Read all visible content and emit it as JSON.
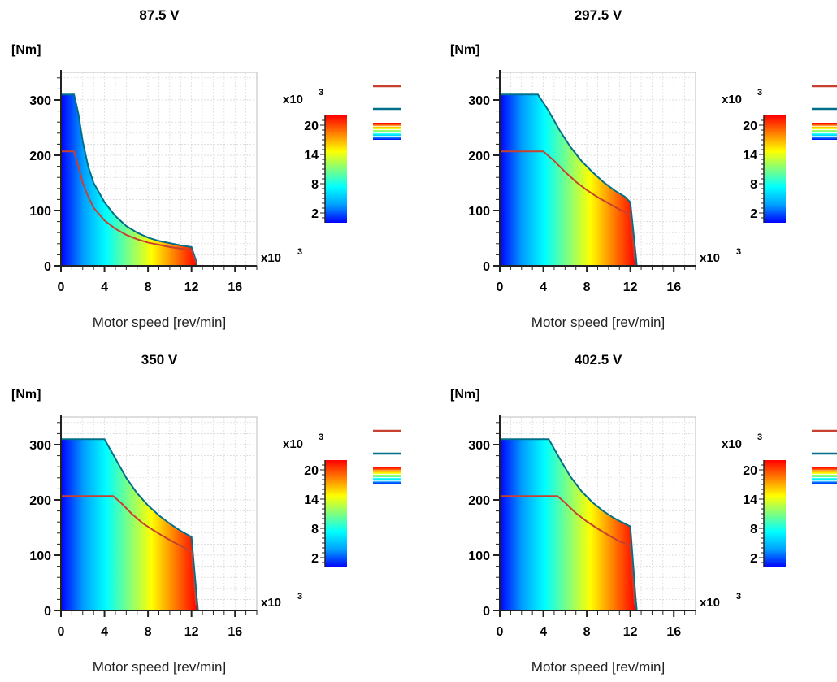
{
  "colors": {
    "max_torque_line": "#00708a",
    "rated_torque_line": "#c8402f",
    "grid": "#d4d4d4",
    "axis": "#222222",
    "colormap": [
      "#0000ff",
      "#00a0ff",
      "#00ffff",
      "#7fff7f",
      "#ffff00",
      "#ff7f00",
      "#ff0000"
    ]
  },
  "chart_data": [
    {
      "type": "area",
      "title": "87.5 V",
      "ylabel": "[Nm]",
      "xlabel": "Motor speed [rev/min]",
      "x_multiplier": "x10",
      "x_multiplier_exp": "3",
      "xlim": [
        0,
        18
      ],
      "ylim": [
        0,
        350
      ],
      "x_ticks": [
        "0",
        "4",
        "8",
        "12",
        "16"
      ],
      "y_ticks": [
        "0",
        "100",
        "200",
        "300"
      ],
      "grid": true,
      "colorbar": {
        "multiplier": "x10",
        "multiplier_exp": "3",
        "ticks": [
          "2",
          "8",
          "14",
          "20"
        ],
        "range": [
          0,
          22
        ]
      },
      "legend": {
        "placement": "top-right",
        "entries": [
          {
            "style": "line",
            "color": "#c8402f"
          },
          {
            "style": "line",
            "color": "#00708a"
          },
          {
            "style": "colormap"
          }
        ]
      },
      "series": [
        {
          "key": "max",
          "x": [
            0,
            1.2,
            1.6,
            2.0,
            2.5,
            3,
            4,
            5,
            6,
            7,
            8,
            9,
            10,
            11,
            12.0,
            12.4,
            12.5,
            18
          ],
          "y": [
            310,
            310,
            275,
            225,
            180,
            150,
            115,
            90,
            72,
            60,
            51,
            45,
            41,
            37,
            34,
            10,
            0,
            0
          ]
        },
        {
          "key": "rated",
          "x": [
            0,
            1.2,
            1.6,
            2.0,
            2.5,
            3,
            4,
            5,
            6,
            7,
            8,
            9,
            10,
            11,
            12.0,
            12.4
          ],
          "y": [
            207,
            207,
            180,
            150,
            125,
            105,
            82,
            67,
            56,
            48,
            42,
            38,
            34,
            31,
            28,
            5
          ]
        }
      ]
    },
    {
      "type": "area",
      "title": "297.5 V",
      "ylabel": "[Nm]",
      "xlabel": "Motor speed [rev/min]",
      "x_multiplier": "x10",
      "x_multiplier_exp": "3",
      "xlim": [
        0,
        18
      ],
      "ylim": [
        0,
        350
      ],
      "x_ticks": [
        "0",
        "4",
        "8",
        "12",
        "16"
      ],
      "y_ticks": [
        "0",
        "100",
        "200",
        "300"
      ],
      "grid": true,
      "colorbar": {
        "multiplier": "x10",
        "multiplier_exp": "3",
        "ticks": [
          "2",
          "8",
          "14",
          "20"
        ],
        "range": [
          0,
          22
        ]
      },
      "legend": {
        "placement": "top-right",
        "entries": [
          {
            "style": "line",
            "color": "#c8402f"
          },
          {
            "style": "line",
            "color": "#00708a"
          },
          {
            "style": "colormap"
          }
        ]
      },
      "series": [
        {
          "key": "max",
          "x": [
            0,
            3.5,
            4.5,
            5.5,
            6.5,
            7.5,
            8.5,
            9.5,
            10.5,
            11.5,
            12.0,
            12.5,
            12.6,
            18
          ],
          "y": [
            310,
            310,
            280,
            245,
            215,
            190,
            170,
            152,
            137,
            125,
            115,
            20,
            0,
            0
          ]
        },
        {
          "key": "rated",
          "x": [
            0,
            4.0,
            5.0,
            6.0,
            7.0,
            8.0,
            9.0,
            10.0,
            11.0,
            12.0,
            12.4
          ],
          "y": [
            207,
            207,
            190,
            170,
            152,
            137,
            124,
            113,
            102,
            93,
            10
          ]
        }
      ]
    },
    {
      "type": "area",
      "title": "350 V",
      "ylabel": "[Nm]",
      "xlabel": "Motor speed [rev/min]",
      "x_multiplier": "x10",
      "x_multiplier_exp": "3",
      "xlim": [
        0,
        18
      ],
      "ylim": [
        0,
        350
      ],
      "x_ticks": [
        "0",
        "4",
        "8",
        "12",
        "16"
      ],
      "y_ticks": [
        "0",
        "100",
        "200",
        "300"
      ],
      "grid": true,
      "colorbar": {
        "multiplier": "x10",
        "multiplier_exp": "3",
        "ticks": [
          "2",
          "8",
          "14",
          "20"
        ],
        "range": [
          0,
          22
        ]
      },
      "legend": {
        "placement": "top-right",
        "entries": [
          {
            "style": "line",
            "color": "#c8402f"
          },
          {
            "style": "line",
            "color": "#00708a"
          },
          {
            "style": "colormap"
          }
        ]
      },
      "series": [
        {
          "key": "max",
          "x": [
            0,
            4.0,
            5.0,
            6.0,
            7.0,
            8.0,
            9.0,
            10.0,
            11.0,
            12.0,
            12.5,
            12.6,
            18
          ],
          "y": [
            310,
            310,
            275,
            240,
            212,
            190,
            172,
            157,
            144,
            133,
            20,
            0,
            0
          ]
        },
        {
          "key": "rated",
          "x": [
            0,
            4.8,
            5.5,
            6.5,
            7.5,
            8.5,
            9.5,
            10.5,
            11.5,
            12.0,
            12.4
          ],
          "y": [
            207,
            207,
            195,
            175,
            158,
            145,
            133,
            122,
            112,
            107,
            10
          ]
        }
      ]
    },
    {
      "type": "area",
      "title": "402.5 V",
      "ylabel": "[Nm]",
      "xlabel": "Motor speed [rev/min]",
      "x_multiplier": "x10",
      "x_multiplier_exp": "3",
      "xlim": [
        0,
        18
      ],
      "ylim": [
        0,
        350
      ],
      "x_ticks": [
        "0",
        "4",
        "8",
        "12",
        "16"
      ],
      "y_ticks": [
        "0",
        "100",
        "200",
        "300"
      ],
      "grid": true,
      "colorbar": {
        "multiplier": "x10",
        "multiplier_exp": "3",
        "ticks": [
          "2",
          "8",
          "14",
          "20"
        ],
        "range": [
          0,
          22
        ]
      },
      "legend": {
        "placement": "top-right",
        "entries": [
          {
            "style": "line",
            "color": "#c8402f"
          },
          {
            "style": "line",
            "color": "#00708a"
          },
          {
            "style": "colormap"
          }
        ]
      },
      "series": [
        {
          "key": "max",
          "x": [
            0,
            4.5,
            5.5,
            6.5,
            7.5,
            8.5,
            9.5,
            10.5,
            11.5,
            12.0,
            12.5,
            12.6,
            18
          ],
          "y": [
            310,
            310,
            275,
            242,
            216,
            196,
            180,
            167,
            157,
            152,
            20,
            0,
            0
          ]
        },
        {
          "key": "rated",
          "x": [
            0,
            5.3,
            6.0,
            7.0,
            8.0,
            9.0,
            10.0,
            11.0,
            12.0,
            12.4
          ],
          "y": [
            207,
            207,
            195,
            176,
            161,
            148,
            136,
            125,
            118,
            10
          ]
        }
      ]
    }
  ]
}
